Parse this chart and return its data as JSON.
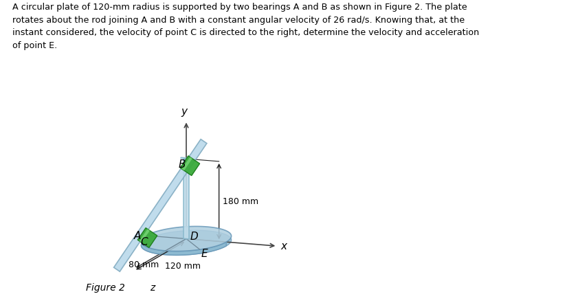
{
  "title_text": "A circular plate of 120-mm radius is supported by two bearings A and B as shown in Figure 2. The plate\nrotates about the rod joining A and B with a constant angular velocity of 26 rad/s. Knowing that, at the\ninstant considered, the velocity of point C is directed to the right, determine the velocity and acceleration\nof point E.",
  "figure_label": "Figure 2 ",
  "figure_z": "z",
  "bg_color": "#ffffff",
  "text_color": "#000000",
  "dim_180": "180 mm",
  "dim_80": "80 mm",
  "dim_120": "120 mm",
  "label_A": "A",
  "label_B": "B",
  "label_C": "C",
  "label_D": "D",
  "label_E": "E",
  "label_x": "x",
  "label_y": "y",
  "disk_color_top": "#b0cfe0",
  "disk_color_side": "#8ab8d0",
  "disk_edge_color": "#6898b8",
  "rod_color": "#b8d8ea",
  "rod_edge_color": "#80aac0",
  "bearing_green": "#3aaa3a",
  "bearing_light": "#80dd80",
  "shaft_color": "#c0dcea",
  "shaft_edge": "#88b8cc",
  "axis_color": "#444444",
  "dim_color": "#222222",
  "line_color": "#555555"
}
